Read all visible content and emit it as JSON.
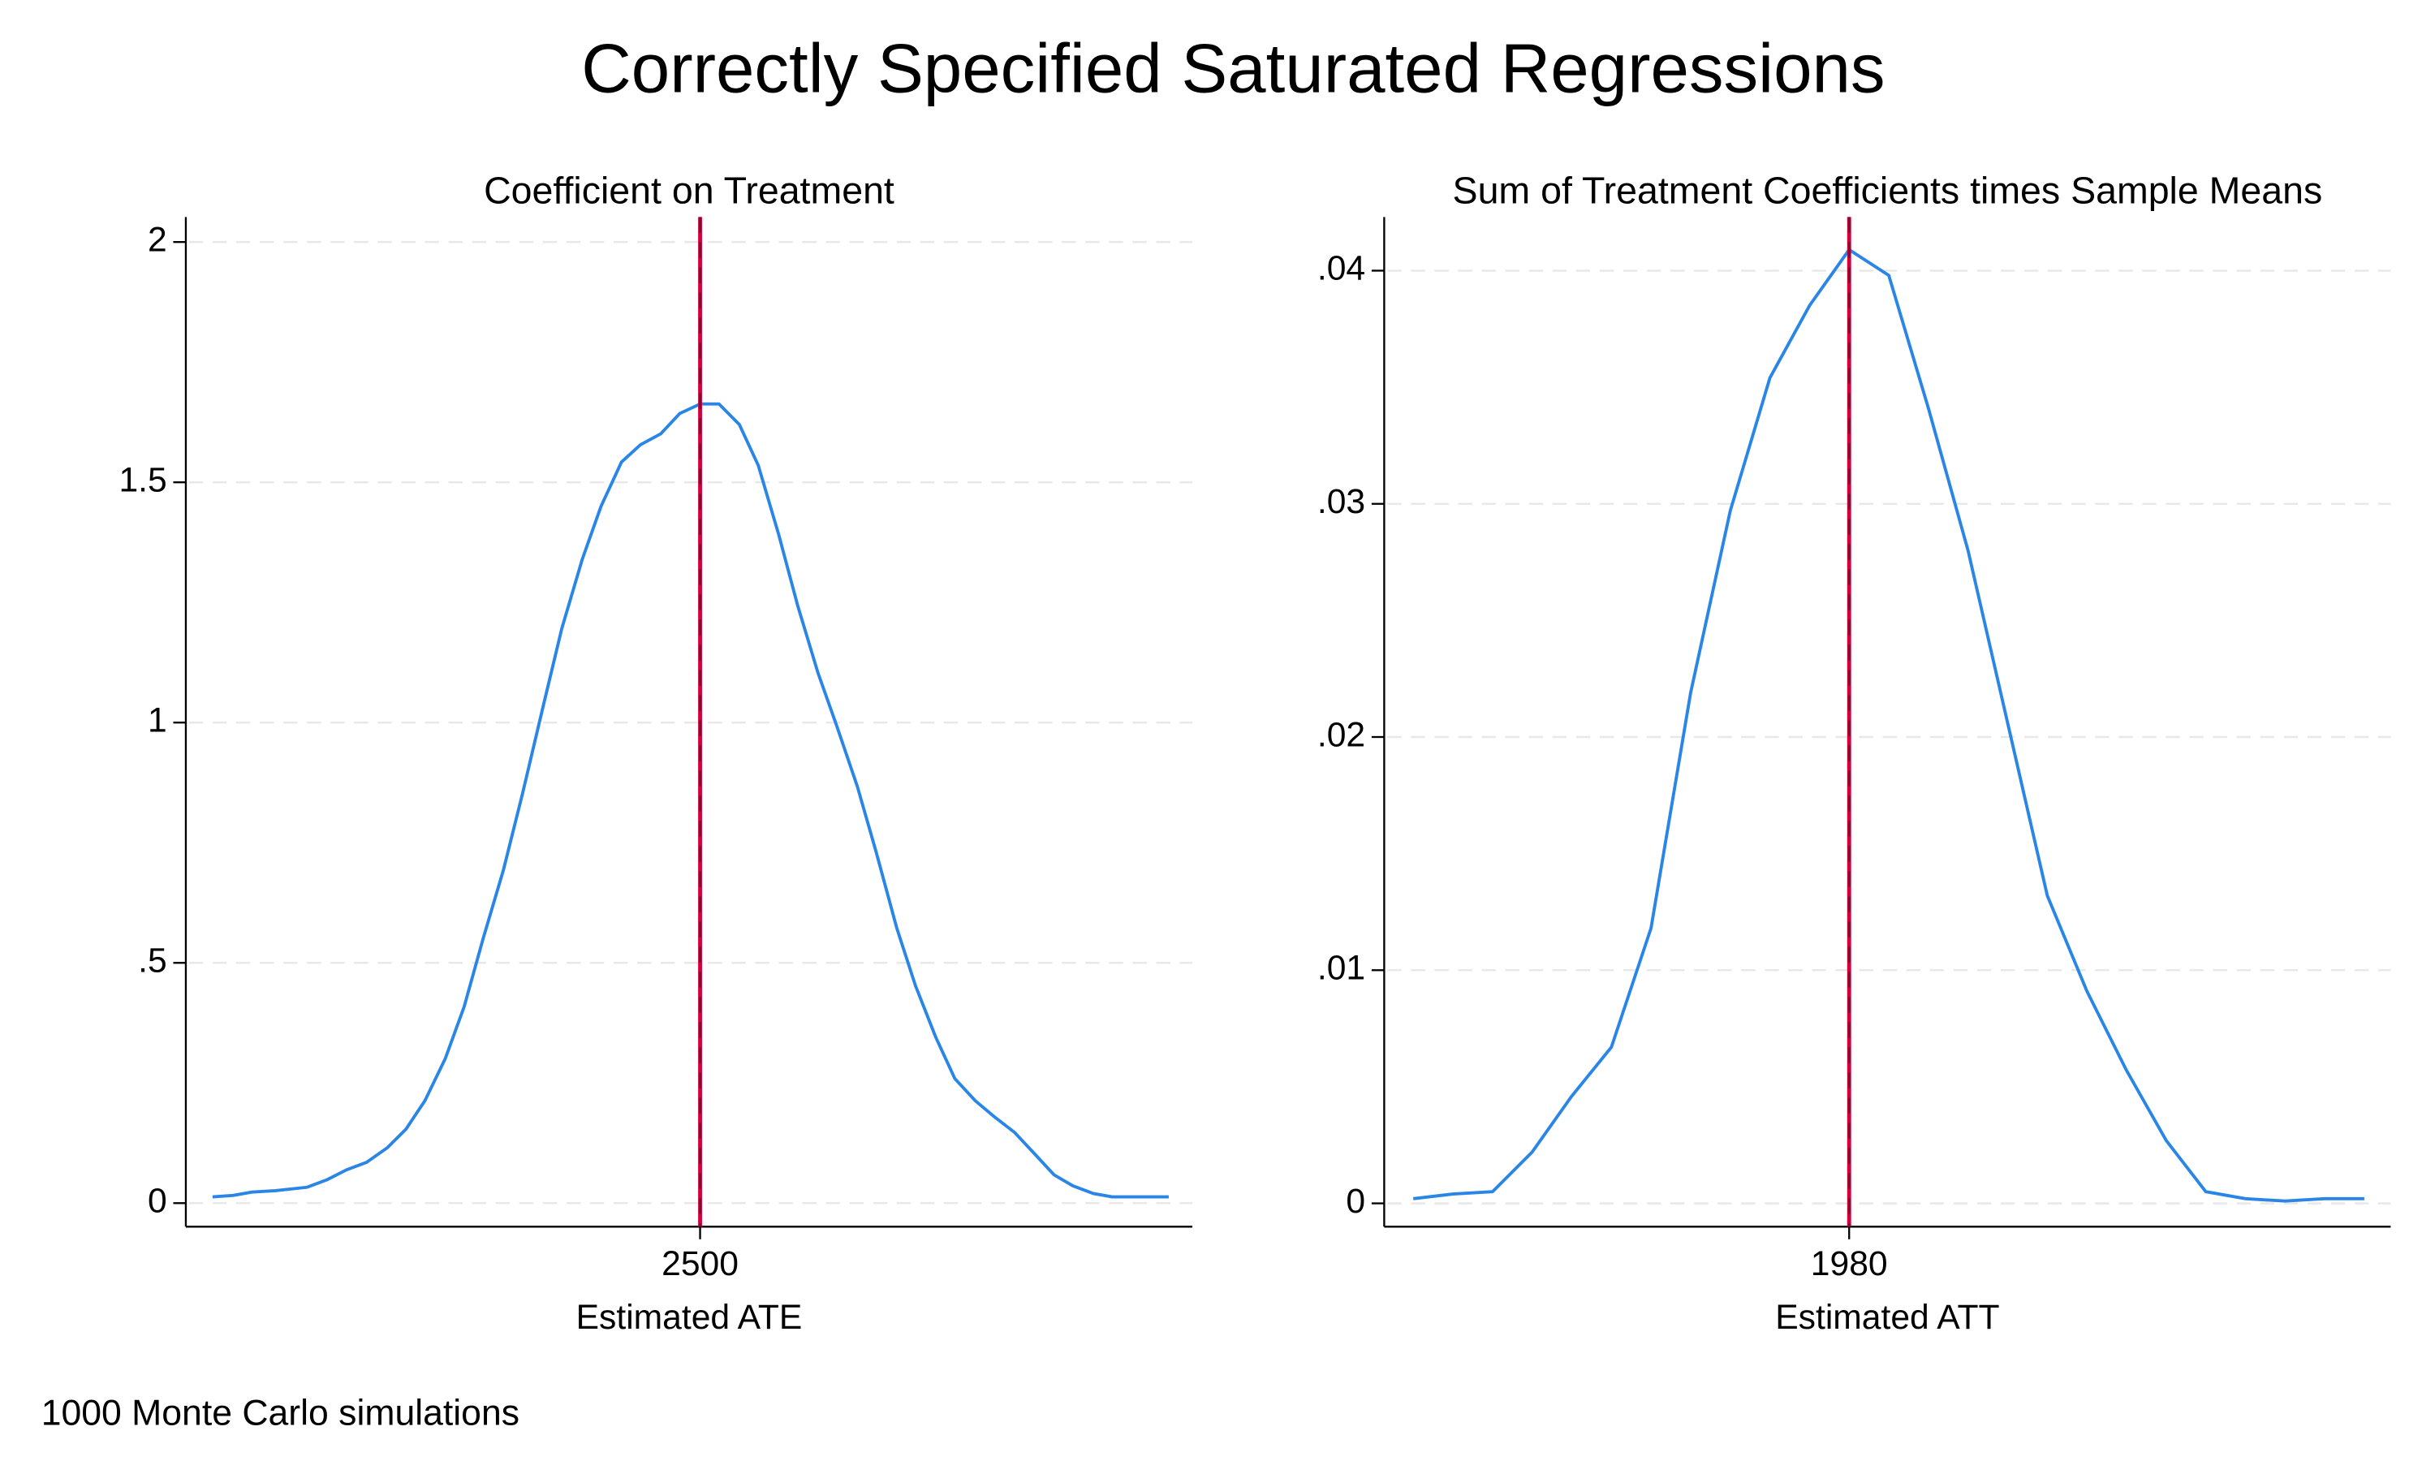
{
  "title": "Correctly Specified Saturated Regressions",
  "note": "1000 Monte Carlo simulations",
  "chart_data": [
    {
      "type": "line",
      "title": "Coefficient on Treatment",
      "x_label": "Estimated ATE",
      "x": [
        2190,
        2203,
        2215,
        2230,
        2250,
        2263,
        2275,
        2288,
        2301,
        2313,
        2325,
        2338,
        2350,
        2362,
        2375,
        2387,
        2400,
        2412,
        2425,
        2437,
        2450,
        2462,
        2475,
        2487,
        2500,
        2512,
        2525,
        2537,
        2550,
        2562,
        2575,
        2587,
        2600,
        2612,
        2625,
        2637,
        2650,
        2662,
        2675,
        2687,
        2700,
        2712,
        2725,
        2737,
        2750,
        2762,
        2775,
        2798
      ],
      "series": [
        {
          "color": "#2a86e6",
          "values": [
            0.013,
            0.016,
            0.023,
            0.026,
            0.033,
            0.049,
            0.069,
            0.085,
            0.115,
            0.154,
            0.213,
            0.301,
            0.409,
            0.55,
            0.694,
            0.851,
            1.031,
            1.195,
            1.339,
            1.45,
            1.542,
            1.578,
            1.601,
            1.643,
            1.663,
            1.663,
            1.62,
            1.535,
            1.391,
            1.244,
            1.103,
            0.992,
            0.867,
            0.73,
            0.573,
            0.452,
            0.344,
            0.259,
            0.213,
            0.18,
            0.147,
            0.105,
            0.059,
            0.036,
            0.02,
            0.013,
            0.013,
            0.013
          ]
        }
      ],
      "xlim": [
        2173,
        2813
      ],
      "xticks": [
        2500
      ],
      "ylim": [
        -0.049,
        2.052
      ],
      "yticks": [
        0,
        {
          "value": 0.5,
          "label": ".5"
        },
        1,
        1.5,
        2
      ],
      "vline": 2500,
      "vline_color": "#d4003c",
      "grid": true
    },
    {
      "type": "line",
      "title": "Sum of Treatment Coefficients times Sample Means",
      "x_label": "Estimated ATT",
      "x": [
        1947,
        1950,
        1953,
        1956,
        1959,
        1962,
        1965,
        1968,
        1971,
        1974,
        1977,
        1980,
        1983,
        1986,
        1989,
        1992,
        1995,
        1998,
        2001,
        2004,
        2007,
        2010,
        2013,
        2016,
        2019
      ],
      "series": [
        {
          "color": "#2a86e6",
          "values": [
            0.0002,
            0.0004,
            0.0005,
            0.0022,
            0.0046,
            0.0067,
            0.0118,
            0.0219,
            0.0297,
            0.0354,
            0.0385,
            0.0409,
            0.0398,
            0.0341,
            0.028,
            0.0206,
            0.0132,
            0.0091,
            0.0057,
            0.0027,
            0.0005,
            0.0002,
            0.0001,
            0.0002,
            0.0002
          ]
        }
      ],
      "xlim": [
        1944.8,
        2021
      ],
      "xticks": [
        1980
      ],
      "ylim": [
        -0.001,
        0.0423
      ],
      "yticks": [
        0,
        {
          "value": 0.01,
          "label": ".01"
        },
        {
          "value": 0.02,
          "label": ".02"
        },
        {
          "value": 0.03,
          "label": ".03"
        },
        {
          "value": 0.04,
          "label": ".04"
        }
      ],
      "vline": 1980,
      "vline_color": "#d4003c",
      "grid": true
    }
  ]
}
